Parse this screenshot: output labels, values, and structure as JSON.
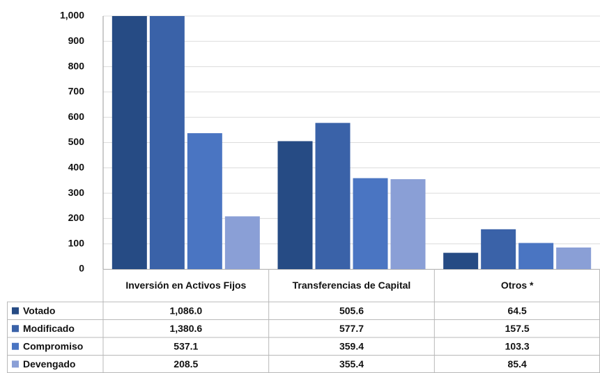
{
  "chart_data": {
    "type": "bar",
    "categories": [
      "Inversión en Activos Fijos",
      "Transferencias de Capital",
      "Otros *"
    ],
    "series": [
      {
        "name": "Votado",
        "color": "#264b84",
        "values": [
          1086.0,
          505.6,
          64.5
        ],
        "value_labels": [
          "1,086.0",
          "505.6",
          "64.5"
        ]
      },
      {
        "name": "Modificado",
        "color": "#3a62a8",
        "values": [
          1380.6,
          577.7,
          157.5
        ],
        "value_labels": [
          "1,380.6",
          "577.7",
          "157.5"
        ]
      },
      {
        "name": "Compromiso",
        "color": "#4a75c2",
        "values": [
          537.1,
          359.4,
          103.3
        ],
        "value_labels": [
          "537.1",
          "359.4",
          "103.3"
        ]
      },
      {
        "name": "Devengado",
        "color": "#8a9fd6",
        "values": [
          208.5,
          355.4,
          85.4
        ],
        "value_labels": [
          "208.5",
          "355.4",
          "85.4"
        ]
      }
    ],
    "ylim": [
      0,
      1000
    ],
    "yticks": [
      0,
      100,
      200,
      300,
      400,
      500,
      600,
      700,
      800,
      900,
      {
        "value": 1000,
        "label": "1,000"
      }
    ],
    "grid": true
  }
}
